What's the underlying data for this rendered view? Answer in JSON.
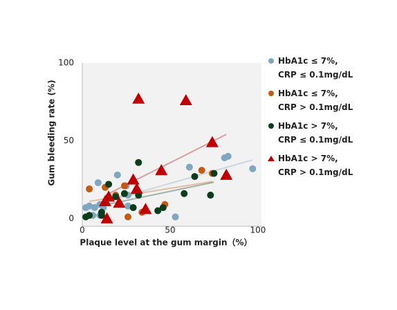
{
  "chart_data": {
    "type": "scatter",
    "xlabel": "Plaque level at the gum margin（%）",
    "ylabel": "Gum bleeding rate (%)",
    "xlim": [
      0,
      102
    ],
    "ylim": [
      -5,
      100
    ],
    "xticks": [
      0,
      50,
      100
    ],
    "yticks": [
      0,
      50,
      100
    ],
    "trendline": true,
    "series": [
      {
        "name": "HbA1c ≤ 7%, CRP ≤ 0.1mg/dL",
        "color": "#7fa7c0",
        "marker": "circle",
        "x": [
          2,
          7,
          10,
          12,
          6,
          10,
          20,
          26,
          25,
          26,
          53,
          61,
          81,
          83,
          97,
          4,
          9
        ],
        "y": [
          7,
          7,
          9,
          7,
          2,
          2,
          28,
          8,
          21,
          15,
          1,
          33,
          39,
          40,
          32,
          8,
          23
        ]
      },
      {
        "name": "HbA1c ≤ 7%, CRP > 0.1mg/dL",
        "color": "#c55a11",
        "marker": "circle",
        "x": [
          4,
          13,
          24,
          26,
          34,
          47,
          68,
          74,
          19
        ],
        "y": [
          19,
          20,
          21,
          1,
          4,
          9,
          31,
          29,
          15
        ]
      },
      {
        "name": "HbA1c > 7%, CRP ≤ 0.1mg/dL",
        "color": "#0b3d1a",
        "marker": "circle",
        "x": [
          2,
          4,
          11,
          15,
          19,
          24,
          29,
          32,
          32,
          43,
          46,
          58,
          64,
          73,
          75,
          11
        ],
        "y": [
          1,
          2,
          4,
          22,
          14,
          16,
          7,
          36,
          15,
          5,
          7,
          16,
          27,
          15,
          29,
          2
        ]
      },
      {
        "name": "HbA1c > 7%, CRP > 0.1mg/dL",
        "color": "#c00000",
        "marker": "triangle",
        "x": [
          32,
          59,
          74,
          45,
          29,
          31,
          36,
          21,
          13,
          15,
          14,
          82
        ],
        "y": [
          77,
          76,
          49,
          31,
          25,
          19,
          6,
          10,
          11,
          14,
          0,
          28
        ]
      }
    ]
  }
}
